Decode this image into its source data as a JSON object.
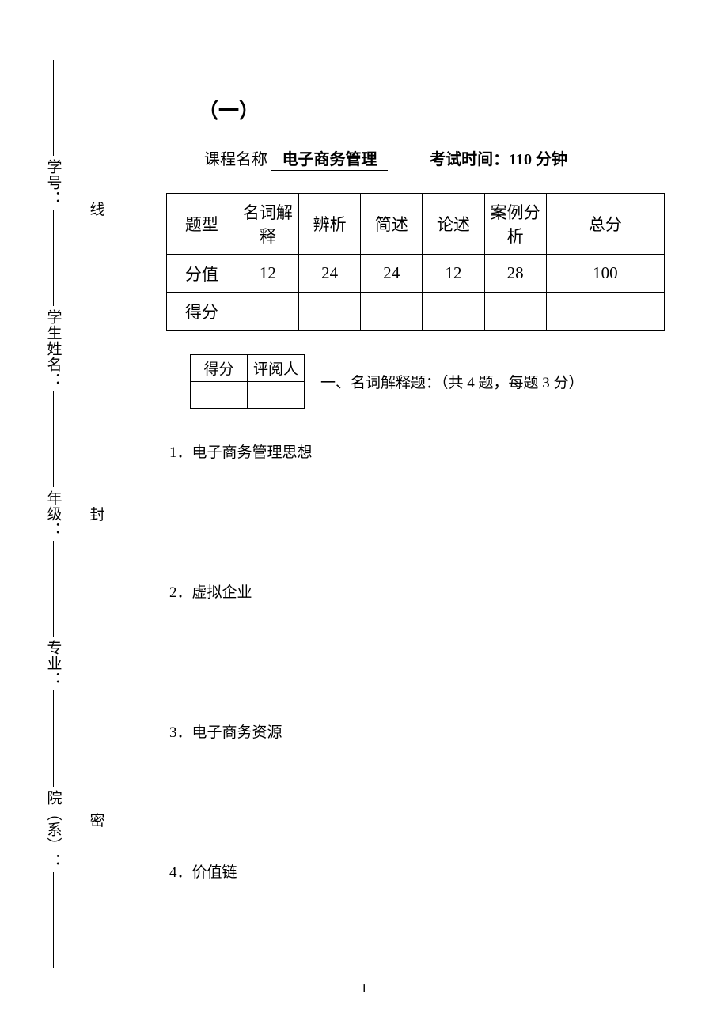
{
  "exam_number": "（一）",
  "header": {
    "course_label": "课程名称",
    "course_name": "电子商务管理",
    "time_label": "考试时间：",
    "time_value": "110 分钟"
  },
  "score_table": {
    "columns": [
      "题型",
      "名词解释",
      "辨析",
      "简述",
      "论述",
      "案例分析",
      "总分"
    ],
    "rows": [
      {
        "label": "分值",
        "cells": [
          "12",
          "24",
          "24",
          "12",
          "28",
          "100"
        ]
      },
      {
        "label": "得分",
        "cells": [
          "",
          "",
          "",
          "",
          "",
          ""
        ]
      }
    ],
    "col_widths_pct": [
      12.5,
      11,
      11,
      11,
      11,
      11,
      21
    ],
    "border_color": "#000000",
    "font_size": 21
  },
  "grade_box": {
    "headers": [
      "得分",
      "评阅人"
    ],
    "values": [
      "",
      ""
    ],
    "border_color": "#000000",
    "font_size": 19
  },
  "section1": {
    "title": "一、名词解释题：（共 4 题，每题 3 分）",
    "questions": [
      "1．电子商务管理思想",
      "2．虚拟企业",
      "3．电子商务资源",
      "4．价值链"
    ]
  },
  "binding": {
    "fields": [
      "学号：",
      "学生姓名：",
      "年级：",
      "专业：",
      "院（系）："
    ],
    "seal_chars": [
      "线",
      "封",
      "密"
    ]
  },
  "page_number": "1",
  "colors": {
    "text": "#000000",
    "background": "#ffffff",
    "border": "#000000"
  },
  "typography": {
    "body_font": "SimSun",
    "heading_font": "SimHei",
    "base_size_pt": 14
  }
}
